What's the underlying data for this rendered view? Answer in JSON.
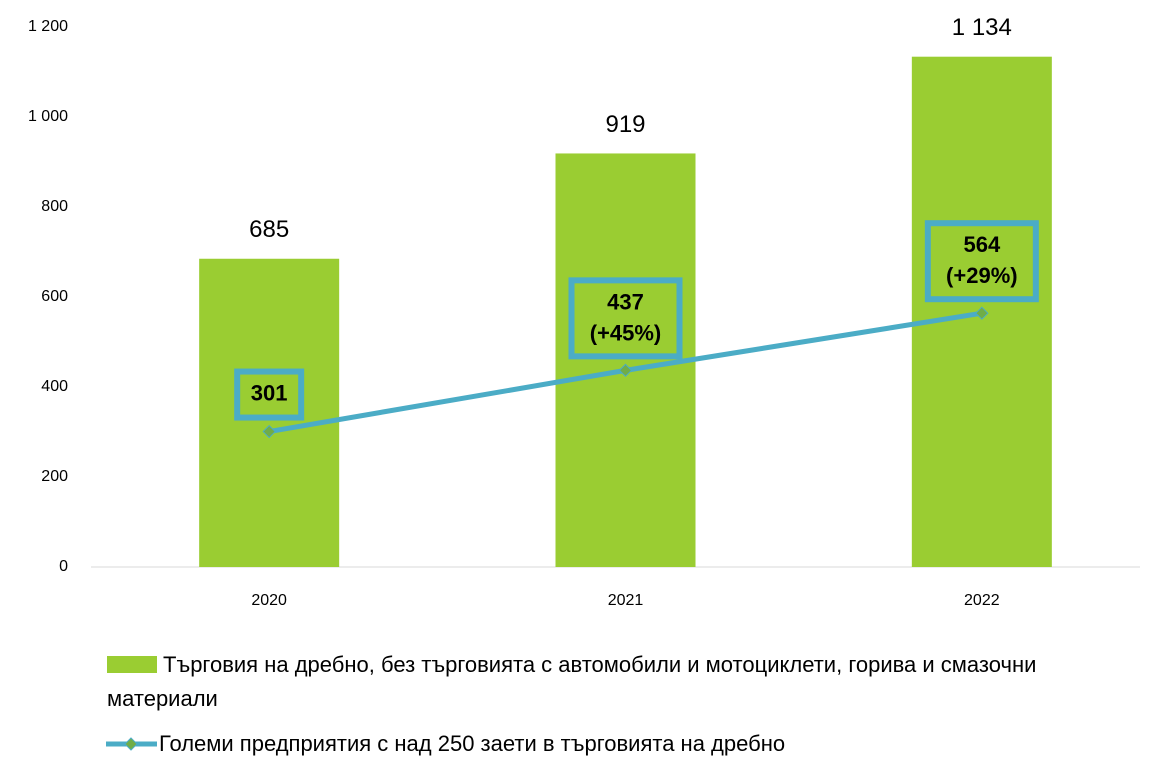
{
  "chart_data": {
    "type": "bar_line",
    "categories": [
      "2020",
      "2021",
      "2022"
    ],
    "series": [
      {
        "name": "Търговия на дребно, без търговията с автомобили и мотоциклети, горива и смазочни материали",
        "type": "bar",
        "color": "#9acd32",
        "values": [
          685,
          919,
          1134
        ],
        "value_labels": [
          "685",
          "919",
          "1 134"
        ]
      },
      {
        "name": "Големи предприятия с над 250 заети в търговията на дребно",
        "type": "line",
        "color": "#4bacc6",
        "marker_color": "#70ad47",
        "values": [
          301,
          437,
          564
        ],
        "value_labels": [
          "301",
          "437\n(+45%)",
          "564\n(+29%)"
        ]
      }
    ],
    "ylim": [
      0,
      1200
    ],
    "yticks": [
      0,
      200,
      400,
      600,
      800,
      {
        "value": 1000,
        "label": "1 000"
      },
      {
        "value": 1200,
        "label": "1 200"
      }
    ],
    "grid": false
  }
}
